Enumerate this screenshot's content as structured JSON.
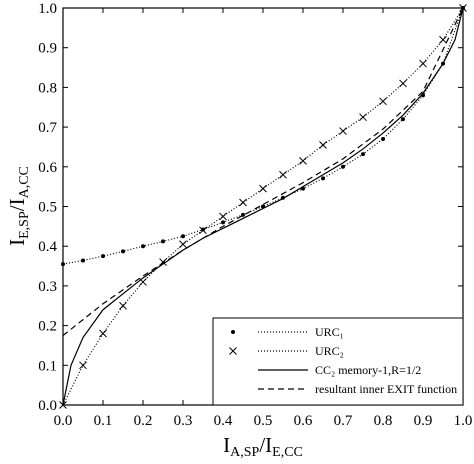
{
  "chart_data": {
    "type": "line",
    "xlabel": {
      "main": "I",
      "sub1": "A,SP",
      "mid": "/I",
      "sub2": "E,CC"
    },
    "ylabel": {
      "main": "I",
      "sub1": "E,SP",
      "mid": "/I",
      "sub2": "A,CC"
    },
    "xlim": [
      0,
      1
    ],
    "ylim": [
      0,
      1
    ],
    "xticks": [
      {
        "value": 0,
        "label": "0.0"
      },
      0.1,
      0.2,
      0.3,
      0.4,
      0.5,
      0.6,
      0.7,
      0.8,
      0.9,
      {
        "value": 1,
        "label": "1.0"
      }
    ],
    "yticks": [
      {
        "value": 0,
        "label": "0.0"
      },
      0.1,
      0.2,
      0.3,
      0.4,
      0.5,
      0.6,
      0.7,
      0.8,
      0.9,
      {
        "value": 1,
        "label": "1.0"
      }
    ],
    "legend": "lower right",
    "series": [
      {
        "name": "URC₁",
        "color": "#000",
        "dash": "1,2",
        "marker": "dot",
        "x": [
          0,
          0.05,
          0.1,
          0.15,
          0.2,
          0.25,
          0.3,
          0.35,
          0.4,
          0.45,
          0.5,
          0.55,
          0.6,
          0.65,
          0.7,
          0.75,
          0.8,
          0.85,
          0.9,
          0.95,
          1
        ],
        "values": [
          0.355,
          0.364,
          0.375,
          0.387,
          0.4,
          0.412,
          0.425,
          0.442,
          0.46,
          0.479,
          0.5,
          0.522,
          0.545,
          0.571,
          0.6,
          0.632,
          0.67,
          0.72,
          0.78,
          0.86,
          1.0
        ]
      },
      {
        "name": "URC₂",
        "color": "#000",
        "dash": "1,2",
        "marker": "cross",
        "x": [
          0,
          0.05,
          0.1,
          0.15,
          0.2,
          0.25,
          0.3,
          0.35,
          0.4,
          0.45,
          0.5,
          0.55,
          0.6,
          0.65,
          0.7,
          0.75,
          0.8,
          0.85,
          0.9,
          0.95,
          1
        ],
        "values": [
          0,
          0.1,
          0.18,
          0.25,
          0.31,
          0.36,
          0.405,
          0.44,
          0.475,
          0.51,
          0.545,
          0.58,
          0.615,
          0.655,
          0.69,
          0.725,
          0.765,
          0.81,
          0.86,
          0.92,
          1.0
        ]
      },
      {
        "name": "CC₂ memory-1,R=1/2",
        "color": "#000",
        "dash": "none",
        "marker": "none",
        "x": [
          0,
          0.02,
          0.05,
          0.1,
          0.15,
          0.2,
          0.25,
          0.3,
          0.35,
          0.4,
          0.45,
          0.5,
          0.55,
          0.6,
          0.65,
          0.7,
          0.75,
          0.8,
          0.85,
          0.9,
          0.95,
          0.98,
          1
        ],
        "values": [
          0,
          0.1,
          0.17,
          0.24,
          0.28,
          0.32,
          0.355,
          0.39,
          0.42,
          0.445,
          0.47,
          0.495,
          0.52,
          0.55,
          0.58,
          0.61,
          0.645,
          0.685,
          0.73,
          0.785,
          0.86,
          0.92,
          1.0
        ]
      },
      {
        "name": "resultant inner EXIT function",
        "color": "#000",
        "dash": "6,4",
        "marker": "none",
        "x": [
          0,
          0.1,
          0.2,
          0.3,
          0.4,
          0.5,
          0.6,
          0.7,
          0.8,
          0.9,
          1
        ],
        "values": [
          0.175,
          0.255,
          0.325,
          0.39,
          0.45,
          0.505,
          0.56,
          0.62,
          0.695,
          0.79,
          1.0
        ]
      }
    ]
  }
}
